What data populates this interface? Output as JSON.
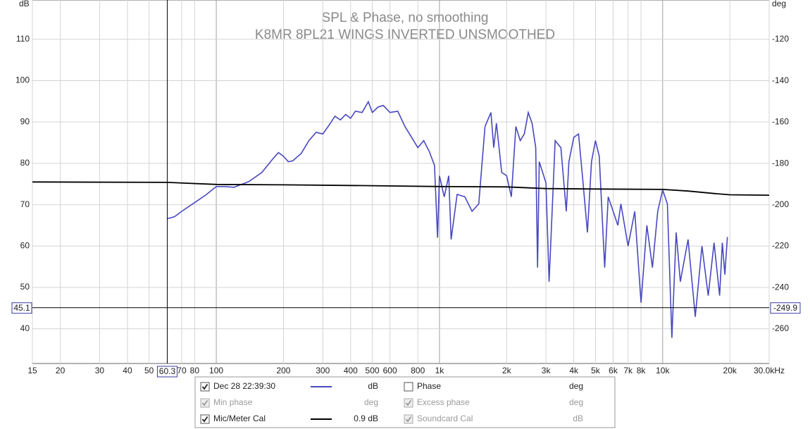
{
  "chart_data": {
    "type": "line",
    "title": "SPL & Phase, no smoothing",
    "subtitle": "K8MR 8PL21 WINGS INVERTED UNSMOOTHED",
    "y_unit": "dB",
    "y2_unit": "deg",
    "log_x": true,
    "grid": true,
    "xlim": [
      15,
      30000
    ],
    "ylim": [
      31.6,
      119.5
    ],
    "y2lim": [
      -276.7,
      -100.9
    ],
    "xticks": [
      15,
      20,
      30,
      40,
      50,
      70,
      80,
      100,
      200,
      300,
      400,
      500,
      600,
      800,
      {
        "value": 1000,
        "label": "1k"
      },
      {
        "value": 2000,
        "label": "2k"
      },
      {
        "value": 3000,
        "label": "3k"
      },
      {
        "value": 4000,
        "label": "4k"
      },
      {
        "value": 5000,
        "label": "5k"
      },
      {
        "value": 6000,
        "label": "6k"
      },
      {
        "value": 7000,
        "label": "7k"
      },
      {
        "value": 8000,
        "label": "8k"
      },
      {
        "value": 10000,
        "label": "10k"
      },
      {
        "value": 20000,
        "label": "20k"
      },
      {
        "value": 30000,
        "label": "30.0kHz"
      }
    ],
    "yticks": [
      40,
      50,
      60,
      70,
      80,
      90,
      100,
      110
    ],
    "y2ticks": [
      -260,
      -240,
      -220,
      -200,
      -180,
      -160,
      -140,
      -120
    ],
    "cursor": {
      "x": 60.3,
      "y": 45.1,
      "y2": -249.9
    },
    "series": [
      {
        "name": "Dec 28 22:39:30",
        "color": "#4848c0",
        "unit": "dB",
        "checked": true,
        "x": [
          60.3,
          65,
          70,
          80,
          90,
          100,
          110,
          120,
          140,
          160,
          180,
          190,
          200,
          210,
          220,
          240,
          260,
          280,
          300,
          320,
          340,
          360,
          380,
          400,
          420,
          450,
          480,
          500,
          530,
          560,
          600,
          650,
          700,
          750,
          800,
          850,
          900,
          950,
          980,
          1000,
          1050,
          1100,
          1128,
          1200,
          1300,
          1400,
          1500,
          1600,
          1700,
          1750,
          1800,
          1900,
          2000,
          2100,
          2200,
          2300,
          2400,
          2500,
          2600,
          2700,
          2750,
          2800,
          3000,
          3100,
          3300,
          3500,
          3700,
          3800,
          4000,
          4200,
          4400,
          4600,
          4800,
          5000,
          5200,
          5500,
          5700,
          6000,
          6300,
          6500,
          7000,
          7500,
          8000,
          8500,
          9000,
          9500,
          10000,
          10500,
          11000,
          11500,
          12000,
          13000,
          14000,
          15000,
          16000,
          17000,
          18000,
          18500,
          19000,
          19500
        ],
        "values": [
          66.6,
          67.1,
          68.4,
          70.5,
          72.4,
          74.4,
          74.4,
          74.2,
          75.6,
          77.8,
          81.2,
          82.6,
          81.7,
          80.4,
          80.6,
          82.4,
          85.5,
          87.5,
          87.1,
          89.2,
          91.4,
          90.5,
          91.8,
          90.9,
          92.6,
          92.3,
          94.9,
          92.3,
          93.6,
          94,
          92.3,
          92.6,
          88.9,
          86.3,
          83.8,
          85.5,
          82.9,
          79.5,
          62,
          77,
          71.9,
          77,
          61.6,
          72.5,
          71.9,
          68.4,
          70.2,
          88.9,
          92.3,
          83.8,
          89.7,
          77.8,
          77,
          71.9,
          88.9,
          85.5,
          87.1,
          92.3,
          89.7,
          83.8,
          54.8,
          80.4,
          75.3,
          51.4,
          85.5,
          83.8,
          68.4,
          80.4,
          86.3,
          87.1,
          75.3,
          63.3,
          80.4,
          85.5,
          81.7,
          54.8,
          71.9,
          68.4,
          65,
          70.2,
          60,
          68.4,
          46.3,
          65,
          54.8,
          68.4,
          73.6,
          70.2,
          37.8,
          63.3,
          51.4,
          61.6,
          42.9,
          60,
          48,
          60.8,
          48,
          60.8,
          53.1,
          62.2
        ]
      },
      {
        "name": "Mic/Meter Cal",
        "color": "#000000",
        "unit": "0.9 dB",
        "checked": true,
        "x": [
          15,
          60,
          100,
          200,
          500,
          1000,
          2000,
          3000,
          5000,
          10000,
          13000,
          17000,
          20000,
          30000
        ],
        "values": [
          75.5,
          75.4,
          74.9,
          74.8,
          74.6,
          74.4,
          74.3,
          73.9,
          73.8,
          73.7,
          73.3,
          72.7,
          72.4,
          72.3
        ]
      }
    ],
    "other_traces": [
      {
        "name": "Min phase",
        "unit": "deg",
        "checked": true,
        "enabled": false
      },
      {
        "name": "Phase",
        "unit": "deg",
        "checked": false,
        "enabled": true
      },
      {
        "name": "Excess phase",
        "unit": "deg",
        "checked": true,
        "enabled": false
      },
      {
        "name": "Soundcard Cal",
        "unit": "dB",
        "checked": true,
        "enabled": false
      }
    ]
  }
}
